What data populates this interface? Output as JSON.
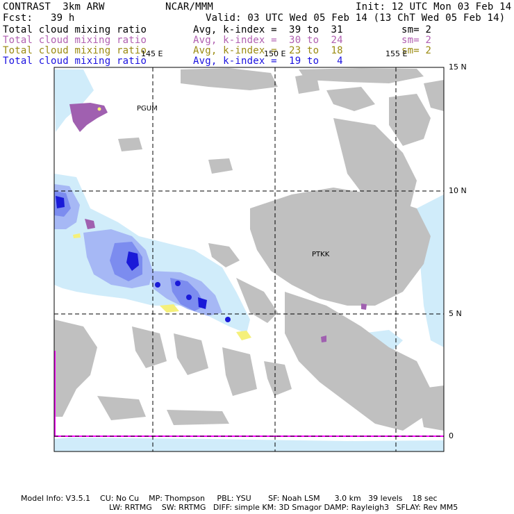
{
  "header": {
    "product": "CONTRAST  3km ARW",
    "center": "NCAR/MMM",
    "init": "Init: 12 UTC Mon 03 Feb 14",
    "fcst": "Fcst:   39 h",
    "valid": "Valid: 03 UTC Wed 05 Feb 14 (13 ChT Wed 05 Feb 14)"
  },
  "fields": [
    {
      "name": "Total cloud mixing ratio",
      "range": "Avg, k-index =  39 to  31",
      "sm": "sm= 2",
      "color": "#000000"
    },
    {
      "name": "Total cloud mixing ratio",
      "range": "Avg, k-index =  30 to  24",
      "sm": "sm= 2",
      "color": "#b05fb0"
    },
    {
      "name": "Total cloud mixing ratio",
      "range": "Avg, k-index =  23 to  18",
      "sm": "sm= 2",
      "color": "#9a8a10"
    },
    {
      "name": "Total cloud mixing ratio",
      "range": "Avg, k-index =  19 to   4",
      "sm": "",
      "color": "#1a10e0"
    }
  ],
  "map": {
    "lon_labels": [
      "145 E",
      "150 E",
      "155 E"
    ],
    "lat_labels": [
      "15 N",
      "10 N",
      "5 N",
      "0"
    ],
    "stations": [
      "PGUM",
      "PTKK"
    ],
    "colors": {
      "gray": "#c0c0c0",
      "light_blue": "#d0ecfa",
      "mid_blue": "#a6b8f5",
      "blue": "#7c8cef",
      "dark_blue": "#1a1ad8",
      "purple": "#a060b0",
      "yellow": "#f5f07a",
      "magenta": "#ff00ff"
    }
  },
  "footer": {
    "line1": "Model Info: V3.5.1    CU: No Cu    MP: Thompson     PBL: YSU       SF: Noah LSM      3.0 km   39 levels    18 sec",
    "line2": "LW: RRTMG    SW: RRTMG   DIFF: simple KM: 3D Smagor DAMP: Rayleigh3   SFLAY: Rev MM5"
  }
}
